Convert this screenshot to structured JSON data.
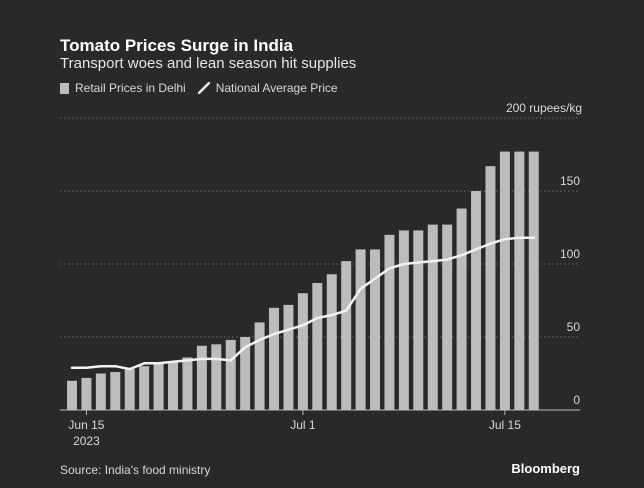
{
  "chart_data": {
    "type": "bar",
    "title": "Tomato Prices Surge in India",
    "subtitle": "Transport woes and lean season hit supplies",
    "legend": [
      {
        "name": "Retail Prices in Delhi",
        "kind": "bar",
        "color": "#bcbcbc"
      },
      {
        "name": "National Average Price",
        "kind": "line",
        "color": "#f2f2f2"
      }
    ],
    "y_unit_label": "200 rupees/kg",
    "ylim": [
      0,
      200
    ],
    "yticks": [
      0,
      50,
      100,
      150
    ],
    "y_axis_side": "right",
    "grid": true,
    "x_tick_labels": [
      {
        "index": 1,
        "label": "Jun 15",
        "sublabel": "2023"
      },
      {
        "index": 16,
        "label": "Jul 1",
        "sublabel": ""
      },
      {
        "index": 30,
        "label": "Jul 15",
        "sublabel": ""
      }
    ],
    "series": [
      {
        "name": "Retail Prices in Delhi",
        "type": "bar",
        "values": [
          20,
          22,
          25,
          26,
          28,
          30,
          32,
          33,
          36,
          44,
          45,
          48,
          50,
          60,
          70,
          72,
          80,
          87,
          93,
          102,
          110,
          110,
          120,
          123,
          123,
          127,
          127,
          138,
          150,
          167,
          177,
          177,
          177
        ]
      },
      {
        "name": "National Average Price",
        "type": "line",
        "values": [
          29,
          29,
          30,
          30,
          28,
          32,
          32,
          33,
          34,
          35,
          35,
          34,
          43,
          48,
          52,
          55,
          58,
          63,
          65,
          68,
          83,
          90,
          97,
          100,
          101,
          102,
          103,
          106,
          110,
          114,
          117,
          118,
          118
        ]
      }
    ]
  },
  "footer": {
    "source": "Source: India's food ministry",
    "brand": "Bloomberg"
  },
  "colors": {
    "background": "#2a2828",
    "bar": "#bcbcbc",
    "line": "#f2f2f2",
    "grid": "#6a6868",
    "text": "#d8d8d8"
  }
}
